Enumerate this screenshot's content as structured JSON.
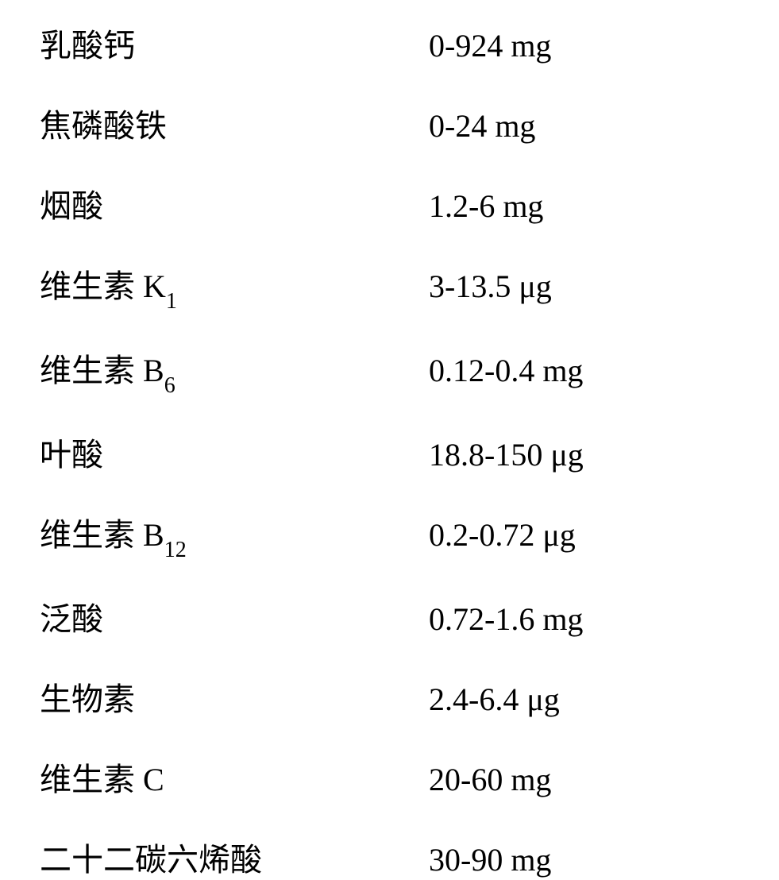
{
  "nutrients": {
    "rows": [
      {
        "label": "乳酸钙",
        "value": "0-924 mg",
        "subscript": null
      },
      {
        "label": "焦磷酸铁",
        "value": "0-24 mg",
        "subscript": null
      },
      {
        "label": "烟酸",
        "value": "1.2-6 mg",
        "subscript": null
      },
      {
        "label_prefix": "维生素 K",
        "subscript": "1",
        "value": " 3-13.5 μg"
      },
      {
        "label_prefix": "维生素 B",
        "subscript": "6",
        "value": " 0.12-0.4 mg"
      },
      {
        "label": "叶酸",
        "value": "18.8-150 μg",
        "subscript": null
      },
      {
        "label_prefix": "维生素 B",
        "subscript": "12",
        "value": "0.2-0.72 μg"
      },
      {
        "label": "泛酸",
        "value": "0.72-1.6 mg",
        "subscript": null
      },
      {
        "label": "生物素",
        "value": "2.4-6.4 μg",
        "subscript": null
      },
      {
        "label": "维生素 C",
        "value": "20-60 mg",
        "subscript": null
      },
      {
        "label": "二十二碳六烯酸",
        "value": "30-90 mg",
        "subscript": null
      }
    ]
  },
  "styles": {
    "font_size_main": 40,
    "font_size_subscript": 28,
    "text_color": "#000000",
    "background_color": "#ffffff",
    "label_width": 490,
    "row_spacing": 43
  }
}
